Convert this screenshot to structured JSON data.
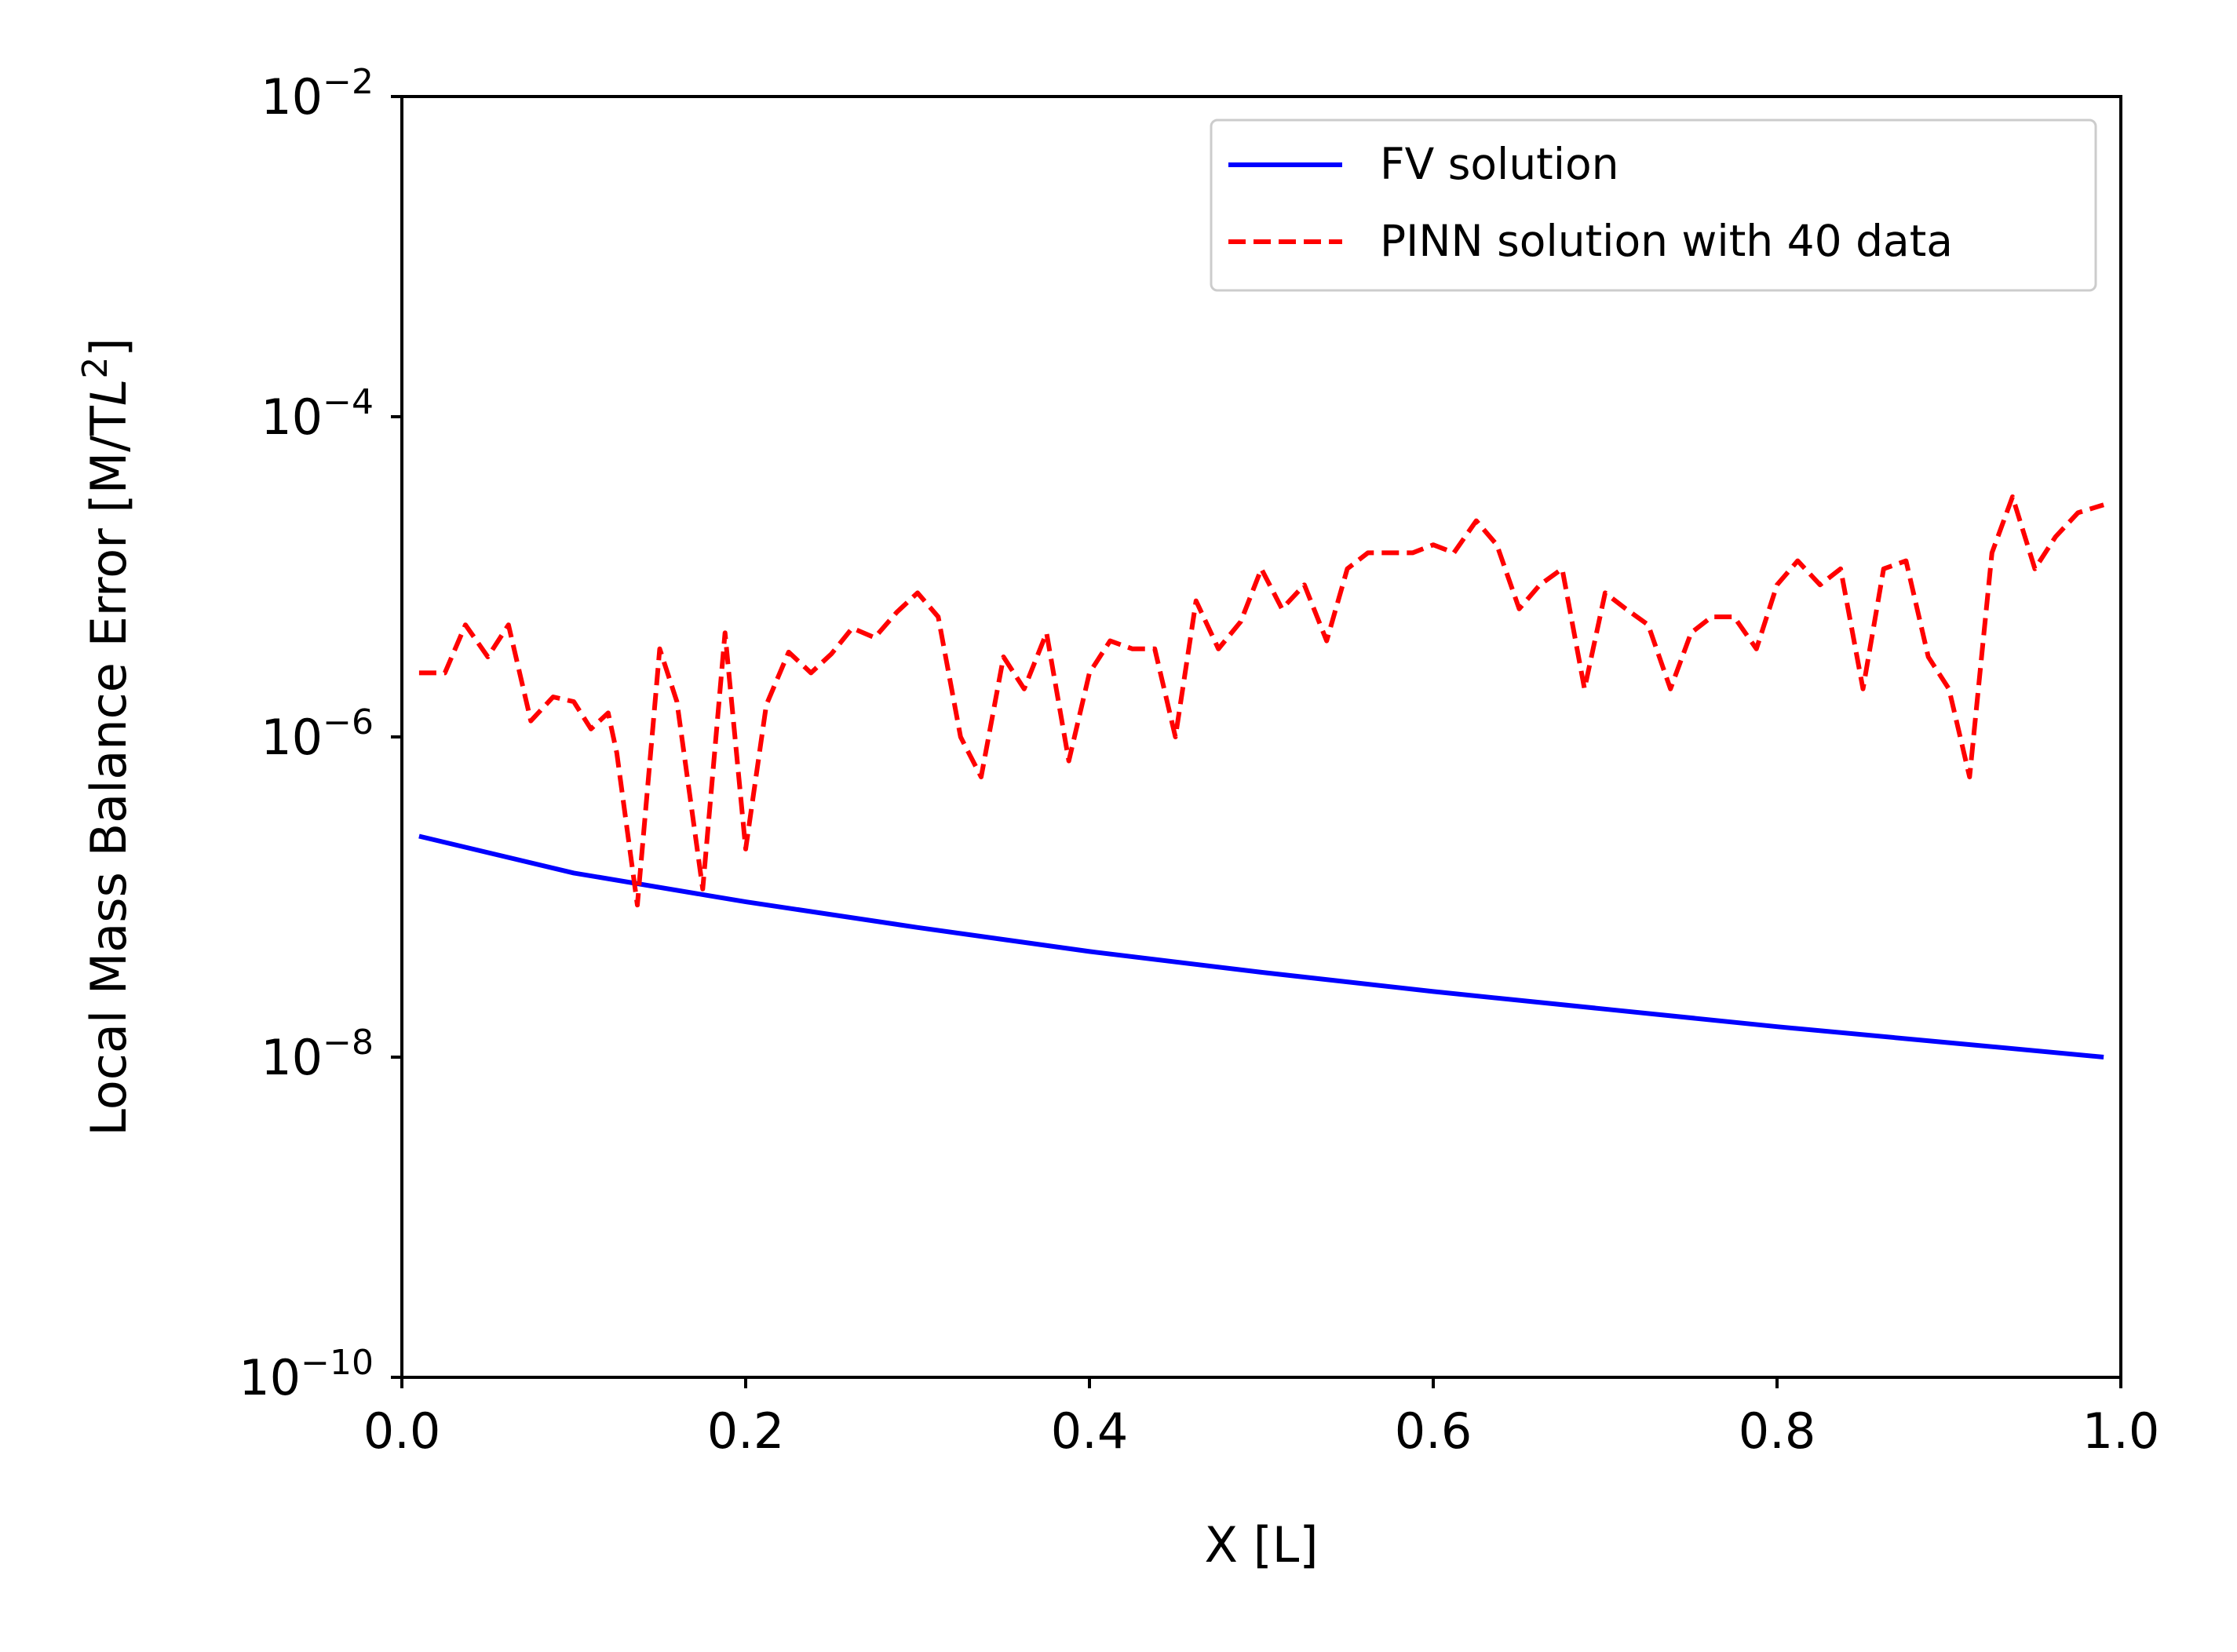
{
  "chart_data": {
    "type": "line",
    "title": "",
    "xlabel": "X [L]",
    "ylabel": "Local Mass Balance Error [M/TL²]",
    "ylabel_main": "Local Mass Balance Error [M/T",
    "ylabel_italic": "L",
    "ylabel_sup": "2",
    "ylabel_close": "]",
    "xlim": [
      0.0,
      1.0
    ],
    "ylim_exponent": [
      -10,
      -2
    ],
    "yscale": "log",
    "grid": false,
    "legend_position": "top-right",
    "x_ticks": [
      {
        "value": 0.0,
        "label": "0.0"
      },
      {
        "value": 0.2,
        "label": "0.2"
      },
      {
        "value": 0.4,
        "label": "0.4"
      },
      {
        "value": 0.6,
        "label": "0.6"
      },
      {
        "value": 0.8,
        "label": "0.8"
      },
      {
        "value": 1.0,
        "label": "1.0"
      }
    ],
    "y_ticks": [
      {
        "exp": -10,
        "base": "10",
        "sup": "−10"
      },
      {
        "exp": -8,
        "base": "10",
        "sup": "−8"
      },
      {
        "exp": -6,
        "base": "10",
        "sup": "−6"
      },
      {
        "exp": -4,
        "base": "10",
        "sup": "−4"
      },
      {
        "exp": -2,
        "base": "10",
        "sup": "−2"
      }
    ],
    "series": [
      {
        "name": "FV solution",
        "color": "#0000ff",
        "style": "solid",
        "x": [
          0.01,
          0.1,
          0.2,
          0.3,
          0.4,
          0.5,
          0.6,
          0.7,
          0.8,
          0.9,
          0.99
        ],
        "log10_y": [
          -6.62,
          -6.85,
          -7.03,
          -7.19,
          -7.34,
          -7.47,
          -7.59,
          -7.7,
          -7.81,
          -7.91,
          -8.0
        ]
      },
      {
        "name": "PINN solution with 40 data",
        "color": "#ff0000",
        "style": "dashed",
        "x": [
          0.01,
          0.025,
          0.037,
          0.05,
          0.062,
          0.075,
          0.088,
          0.1,
          0.11,
          0.12,
          0.125,
          0.137,
          0.15,
          0.16,
          0.175,
          0.188,
          0.2,
          0.212,
          0.225,
          0.238,
          0.25,
          0.262,
          0.275,
          0.288,
          0.3,
          0.312,
          0.325,
          0.337,
          0.35,
          0.362,
          0.375,
          0.388,
          0.4,
          0.412,
          0.425,
          0.438,
          0.45,
          0.462,
          0.475,
          0.488,
          0.5,
          0.512,
          0.525,
          0.538,
          0.55,
          0.562,
          0.575,
          0.588,
          0.6,
          0.612,
          0.625,
          0.637,
          0.65,
          0.662,
          0.675,
          0.688,
          0.7,
          0.712,
          0.725,
          0.738,
          0.75,
          0.762,
          0.775,
          0.788,
          0.8,
          0.812,
          0.825,
          0.837,
          0.85,
          0.862,
          0.875,
          0.888,
          0.9,
          0.912,
          0.925,
          0.937,
          0.95,
          0.962,
          0.975,
          0.99
        ],
        "log10_y": [
          -5.6,
          -5.6,
          -5.3,
          -5.5,
          -5.3,
          -5.9,
          -5.75,
          -5.78,
          -5.95,
          -5.85,
          -6.1,
          -7.05,
          -5.45,
          -5.78,
          -6.95,
          -5.35,
          -6.7,
          -5.8,
          -5.47,
          -5.6,
          -5.48,
          -5.32,
          -5.38,
          -5.22,
          -5.1,
          -5.25,
          -6.0,
          -6.25,
          -5.5,
          -5.7,
          -5.35,
          -6.15,
          -5.6,
          -5.4,
          -5.45,
          -5.45,
          -6.0,
          -5.15,
          -5.45,
          -5.28,
          -4.95,
          -5.2,
          -5.05,
          -5.4,
          -4.95,
          -4.85,
          -4.85,
          -4.85,
          -4.8,
          -4.85,
          -4.65,
          -4.8,
          -5.2,
          -5.05,
          -4.95,
          -5.7,
          -5.1,
          -5.2,
          -5.3,
          -5.7,
          -5.35,
          -5.25,
          -5.25,
          -5.45,
          -5.05,
          -4.9,
          -5.05,
          -4.95,
          -5.7,
          -4.95,
          -4.9,
          -5.5,
          -5.7,
          -6.25,
          -4.85,
          -4.5,
          -4.95,
          -4.75,
          -4.6,
          -4.55
        ]
      }
    ]
  }
}
